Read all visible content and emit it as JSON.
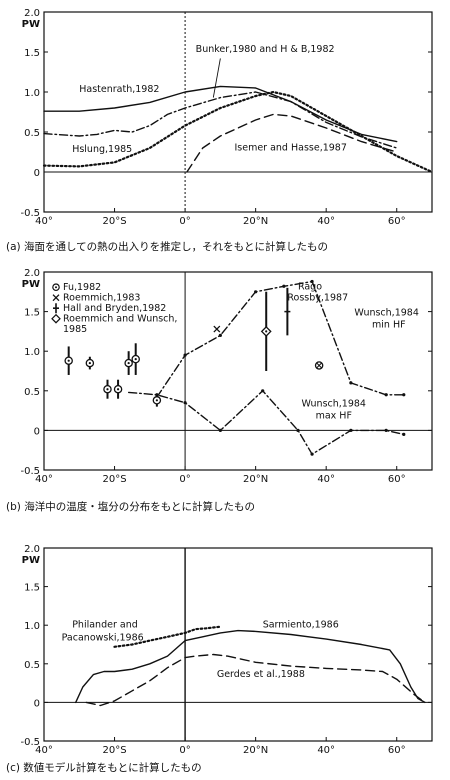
{
  "chart_data": [
    {
      "type": "line",
      "caption": "(a) 海面を通しての熱の出入りを推定し，それをもとに計算したもの",
      "ylabel": "PW",
      "ylim": [
        -0.5,
        2.0
      ],
      "xlim": [
        -40,
        70
      ],
      "yticks": [
        "2.0",
        "1.5",
        "1.0",
        "0.5",
        "0",
        "-0.5"
      ],
      "yticks_values": [
        2.0,
        1.5,
        1.0,
        0.5,
        0,
        -0.5
      ],
      "xticks": [
        "40°",
        "20°S",
        "0°",
        "20°N",
        "40°",
        "60°"
      ],
      "xticks_values": [
        -40,
        -20,
        0,
        20,
        40,
        60
      ],
      "series": [
        {
          "name": "Hastenrath,1982",
          "style": "solid",
          "x": [
            -40,
            -30,
            -20,
            -10,
            0,
            10,
            20,
            30,
            40,
            50,
            60
          ],
          "y": [
            0.76,
            0.76,
            0.8,
            0.87,
            1.0,
            1.07,
            1.05,
            0.88,
            0.65,
            0.47,
            0.38
          ]
        },
        {
          "name": "Bunker,1980 and H & B,1982",
          "style": "dashdot",
          "x": [
            -40,
            -30,
            -25,
            -20,
            -15,
            -10,
            -5,
            0,
            10,
            20,
            30,
            40,
            50,
            60
          ],
          "y": [
            0.48,
            0.45,
            0.47,
            0.52,
            0.5,
            0.58,
            0.72,
            0.8,
            0.93,
            1.0,
            0.88,
            0.62,
            0.44,
            0.3
          ]
        },
        {
          "name": "Hslung,1985",
          "style": "dotted",
          "x": [
            -40,
            -30,
            -20,
            -10,
            0,
            10,
            20,
            25,
            30,
            40,
            50,
            60,
            70
          ],
          "y": [
            0.08,
            0.07,
            0.12,
            0.3,
            0.58,
            0.8,
            0.95,
            1.0,
            0.95,
            0.7,
            0.45,
            0.2,
            0.0
          ]
        },
        {
          "name": "Isemer and Hasse,1987",
          "style": "dashed",
          "x": [
            0.5,
            5,
            10,
            20,
            25,
            30,
            40,
            50,
            60
          ],
          "y": [
            0.0,
            0.3,
            0.45,
            0.65,
            0.72,
            0.7,
            0.55,
            0.38,
            0.25
          ]
        }
      ],
      "labels": [
        {
          "text": "Hastenrath,1982",
          "x": -30,
          "y": 1.0
        },
        {
          "text": "Bunker,1980 and H & B,1982",
          "x": 3,
          "y": 1.5
        },
        {
          "text": "Hslung,1985",
          "x": -32,
          "y": 0.25
        },
        {
          "text": "Isemer and Hasse,1987",
          "x": 14,
          "y": 0.27
        }
      ]
    },
    {
      "type": "scatter",
      "caption": "(b) 海洋中の温度・塩分の分布をもとに計算したもの",
      "ylabel": "PW",
      "ylim": [
        -0.5,
        2.0
      ],
      "xlim": [
        -40,
        70
      ],
      "yticks": [
        "2.0",
        "1.5",
        "1.0",
        "0.5",
        "0",
        "-0.5"
      ],
      "yticks_values": [
        2.0,
        1.5,
        1.0,
        0.5,
        0,
        -0.5
      ],
      "xticks": [
        "40°",
        "20°S",
        "0°",
        "20°N",
        "40°",
        "60°"
      ],
      "xticks_values": [
        -40,
        -20,
        0,
        20,
        40,
        60
      ],
      "series": [
        {
          "name": "Wunsch,1984 min HF",
          "style": "dashdot",
          "x": [
            -8,
            0,
            10,
            20,
            28,
            36,
            47,
            57,
            62
          ],
          "y": [
            0.42,
            0.95,
            1.2,
            1.75,
            1.82,
            1.88,
            0.6,
            0.45,
            0.45
          ]
        },
        {
          "name": "Wunsch,1984 max HF",
          "style": "dashdot",
          "x": [
            -16,
            -8,
            0,
            10,
            22,
            32,
            36,
            47,
            57,
            62
          ],
          "y": [
            0.48,
            0.45,
            0.35,
            0.0,
            0.5,
            0.0,
            -0.3,
            0.0,
            0.0,
            -0.05
          ]
        }
      ],
      "points": [
        {
          "marker": "circle-dot",
          "x": -33,
          "y": 0.88,
          "err": 0.18
        },
        {
          "marker": "circle-dot",
          "x": -27,
          "y": 0.85,
          "err": 0.08
        },
        {
          "marker": "circle-dot",
          "x": -22,
          "y": 0.52,
          "err": 0.12
        },
        {
          "marker": "circle-dot",
          "x": -19,
          "y": 0.52,
          "err": 0.12
        },
        {
          "marker": "circle-dot",
          "x": -16,
          "y": 0.85,
          "err": 0.15
        },
        {
          "marker": "circle-dot",
          "x": -14,
          "y": 0.9,
          "err": 0.2
        },
        {
          "marker": "circle-dot",
          "x": -8,
          "y": 0.38,
          "err": 0.08
        },
        {
          "marker": "x",
          "x": 9,
          "y": 1.28,
          "err": 0
        },
        {
          "marker": "cross-bar",
          "x": 29,
          "y": 1.5,
          "err": 0.3
        },
        {
          "marker": "diamond-dot",
          "x": 23,
          "y": 1.25,
          "err": 0.5
        },
        {
          "marker": "circle-x",
          "x": 38,
          "y": 0.82,
          "err": 0
        }
      ],
      "legend": [
        {
          "marker": "circle-dot",
          "text": "Fu,1982"
        },
        {
          "marker": "x",
          "text": "Roemmich,1983"
        },
        {
          "marker": "cross-bar",
          "text": "Hall and Bryden,1982"
        },
        {
          "marker": "diamond",
          "text": "Roemmich and Wunsch,"
        },
        {
          "marker": "none",
          "text": "1985"
        }
      ],
      "labels": [
        {
          "text": "Rago",
          "x": 32,
          "y": 1.78
        },
        {
          "text": "Rossby,1987",
          "x": 29,
          "y": 1.64
        },
        {
          "text": "Wunsch,1984",
          "x": 48,
          "y": 1.45
        },
        {
          "text": "min HF",
          "x": 53,
          "y": 1.3
        },
        {
          "text": "Wunsch,1984",
          "x": 33,
          "y": 0.3
        },
        {
          "text": "max HF",
          "x": 37,
          "y": 0.15
        }
      ]
    },
    {
      "type": "line",
      "caption": "(c) 数値モデル計算をもとに計算したもの",
      "ylabel": "PW",
      "ylim": [
        -0.5,
        2.0
      ],
      "xlim": [
        -40,
        70
      ],
      "yticks": [
        "2.0",
        "1.5",
        "1.0",
        "0.5",
        "0",
        "-0.5"
      ],
      "yticks_values": [
        2.0,
        1.5,
        1.0,
        0.5,
        0,
        -0.5
      ],
      "xticks": [
        "40°",
        "20°S",
        "0°",
        "20°N",
        "40°",
        "60°"
      ],
      "xticks_values": [
        -40,
        -20,
        0,
        20,
        40,
        60
      ],
      "series": [
        {
          "name": "Sarmiento,1986",
          "style": "solid",
          "x": [
            -31,
            -29,
            -26,
            -23,
            -20,
            -15,
            -10,
            -5,
            0,
            5,
            10,
            15,
            20,
            30,
            40,
            50,
            58,
            61,
            64,
            66,
            68
          ],
          "y": [
            0.0,
            0.2,
            0.36,
            0.4,
            0.4,
            0.43,
            0.5,
            0.6,
            0.8,
            0.85,
            0.9,
            0.93,
            0.92,
            0.88,
            0.82,
            0.75,
            0.68,
            0.5,
            0.2,
            0.05,
            0.0
          ]
        },
        {
          "name": "Philander and Pacanowski,1986",
          "style": "dotted",
          "x": [
            -20,
            -15,
            -10,
            -5,
            0,
            3,
            6,
            10
          ],
          "y": [
            0.72,
            0.75,
            0.8,
            0.85,
            0.9,
            0.95,
            0.96,
            0.98
          ]
        },
        {
          "name": "Gerdes et al.,1988",
          "style": "dashed",
          "x": [
            -28,
            -24,
            -20,
            -15,
            -10,
            -5,
            0,
            3,
            8,
            12,
            20,
            30,
            40,
            50,
            56,
            60,
            65,
            68
          ],
          "y": [
            0.0,
            -0.04,
            0.02,
            0.15,
            0.28,
            0.45,
            0.58,
            0.6,
            0.62,
            0.6,
            0.52,
            0.47,
            0.44,
            0.42,
            0.4,
            0.3,
            0.1,
            0.0
          ]
        }
      ],
      "labels": [
        {
          "text": "Philander and",
          "x": -32,
          "y": 0.97
        },
        {
          "text": "Pacanowski,1986",
          "x": -35,
          "y": 0.8
        },
        {
          "text": "Sarmiento,1986",
          "x": 22,
          "y": 0.97
        },
        {
          "text": "Gerdes et al.,1988",
          "x": 9,
          "y": 0.33
        }
      ]
    }
  ]
}
